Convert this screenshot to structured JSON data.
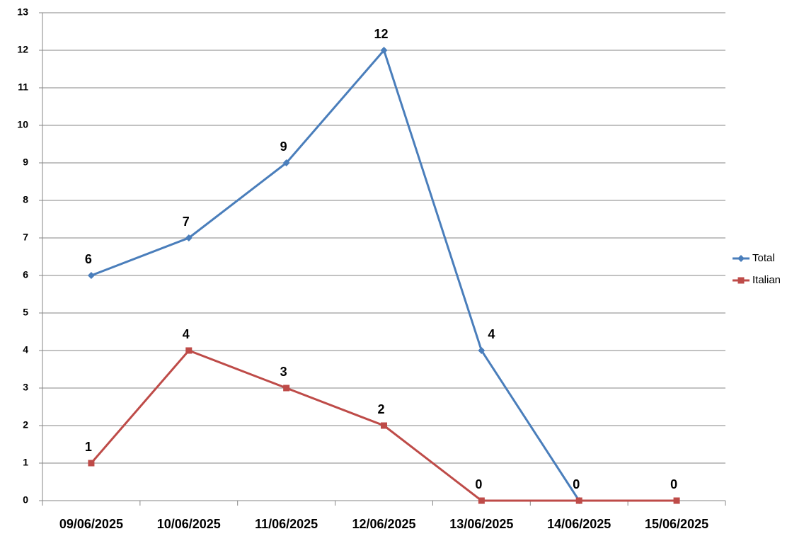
{
  "chart_data": {
    "type": "line",
    "categories": [
      "09/06/2025",
      "10/06/2025",
      "11/06/2025",
      "12/06/2025",
      "13/06/2025",
      "14/06/2025",
      "15/06/2025"
    ],
    "series": [
      {
        "name": "Total",
        "color": "#4a7ebb",
        "marker": "diamond",
        "values": [
          6,
          7,
          9,
          12,
          4,
          0,
          null
        ]
      },
      {
        "name": "Italian",
        "color": "#be4b48",
        "marker": "square",
        "values": [
          1,
          4,
          3,
          2,
          0,
          0,
          0
        ]
      }
    ],
    "ylim": [
      0,
      13
    ],
    "yticks": [
      0,
      1,
      2,
      3,
      4,
      5,
      6,
      7,
      8,
      9,
      10,
      11,
      12,
      13
    ],
    "grid": true,
    "data_labels": true,
    "legend": "right"
  }
}
